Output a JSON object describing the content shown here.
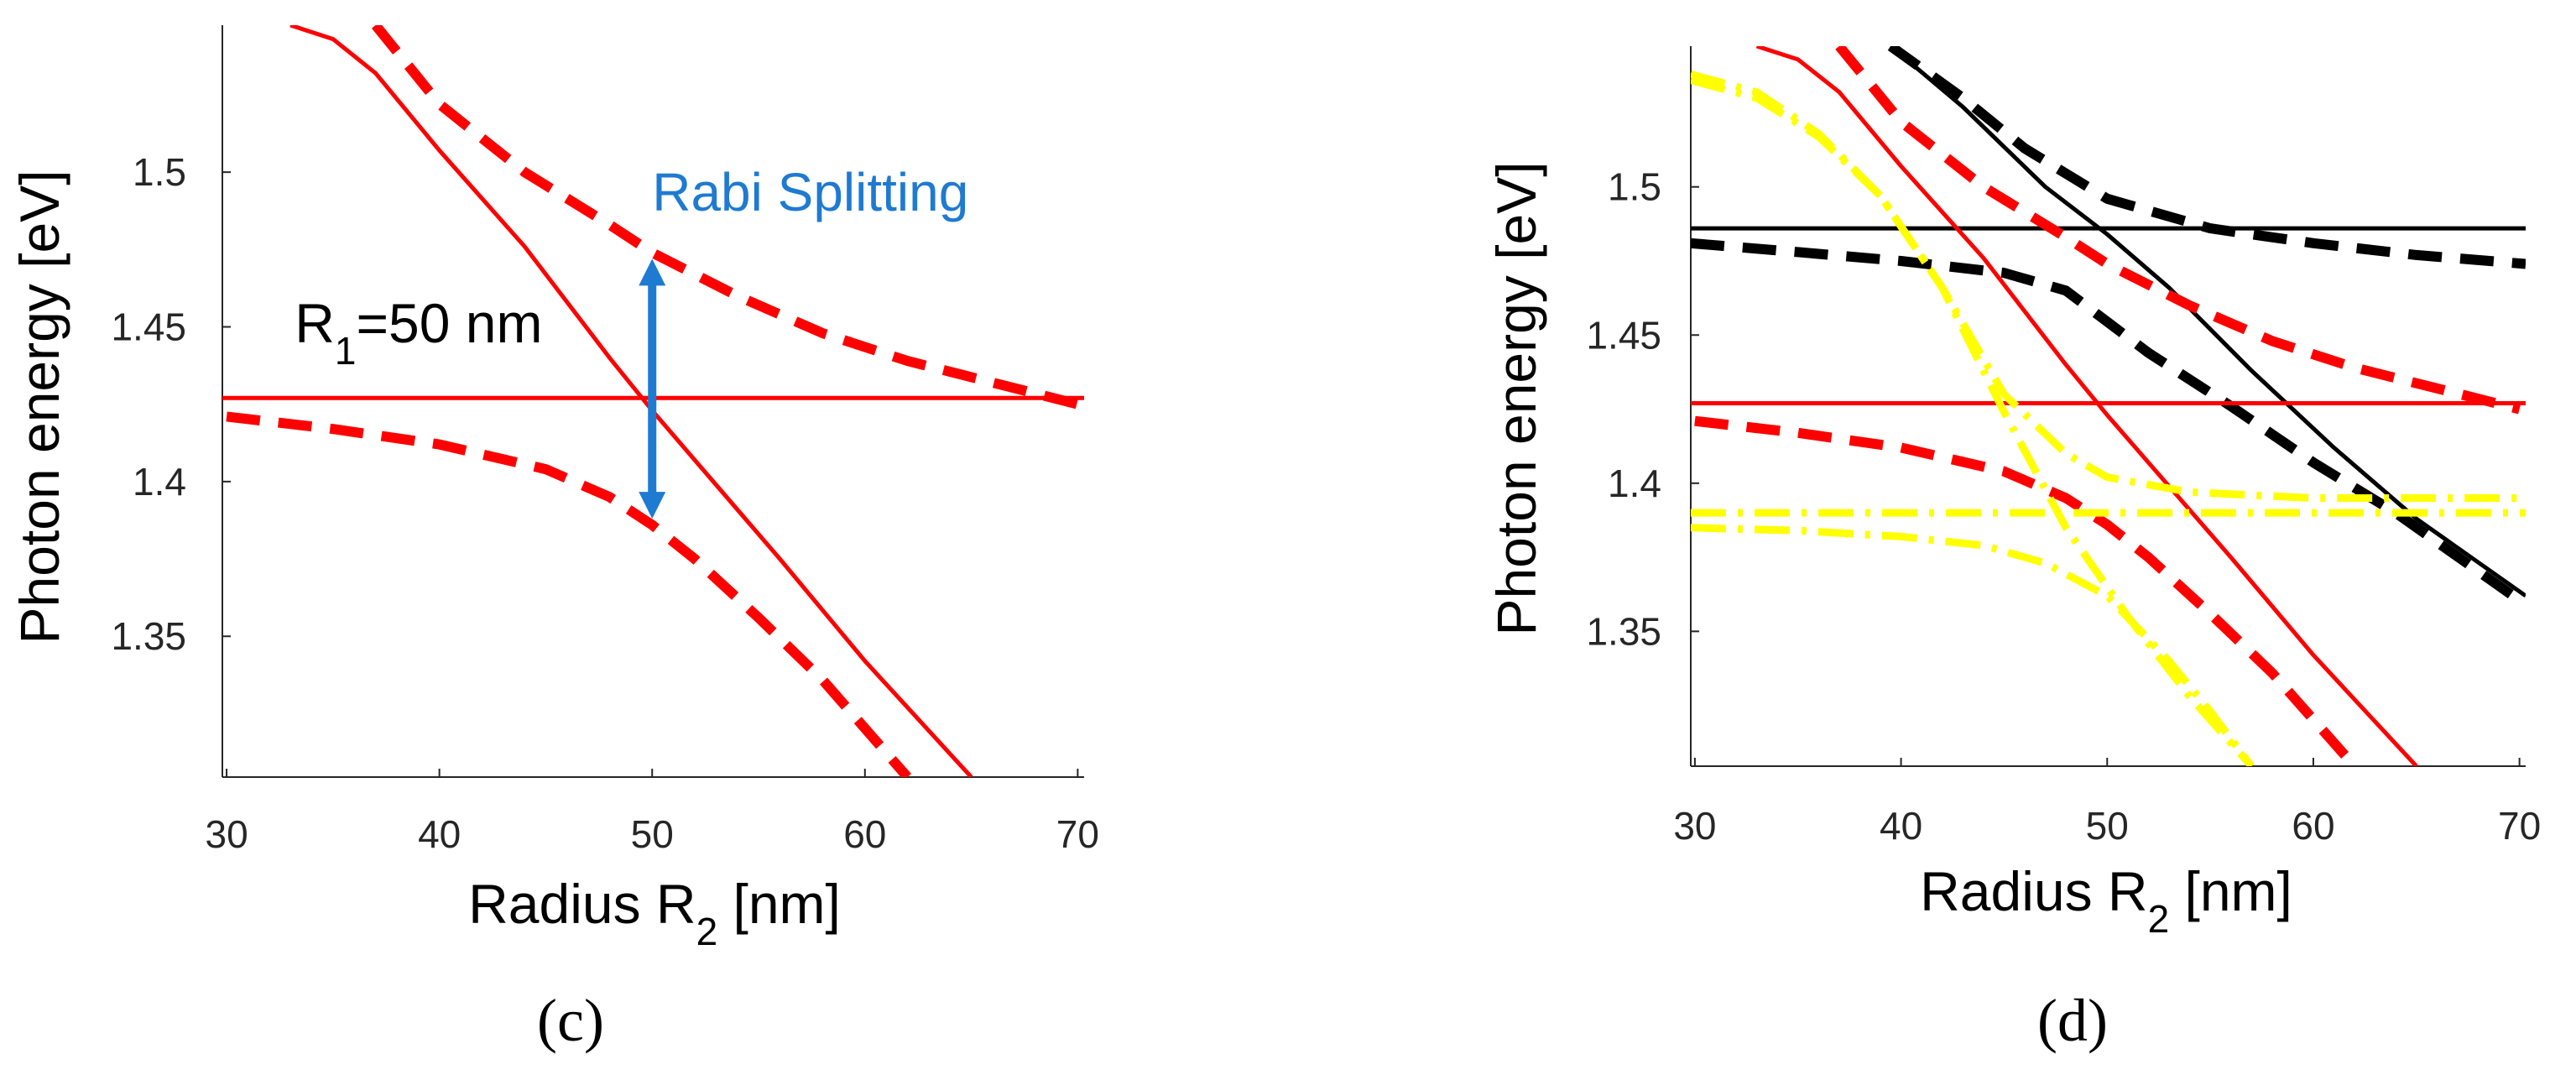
{
  "chart_data": [
    {
      "type": "line",
      "panel_label": "(c)",
      "xlabel": "Radius R",
      "xlabel_sub": "2",
      "xlabel_unit": " [nm]",
      "ylabel": "Photon energy [eV]",
      "xlim": [
        29.8,
        70.3
      ],
      "ylim": [
        1.3045,
        1.5475
      ],
      "x_ticks": [
        30,
        40,
        50,
        60,
        70
      ],
      "x_tick_labels": [
        "30",
        "40",
        "50",
        "60",
        "70"
      ],
      "y_ticks": [
        1.35,
        1.4,
        1.45,
        1.5
      ],
      "y_tick_labels": [
        "1.35",
        "1.4",
        "1.45",
        "1.5"
      ],
      "annotations": [
        {
          "kind": "text",
          "prefix": "R",
          "sub": "1",
          "suffix": "=50 nm",
          "x": 33.2,
          "y": 1.445
        },
        {
          "kind": "double-arrow",
          "label": "Rabi Splitting",
          "x": 50,
          "y_from": 1.388,
          "y_to": 1.472,
          "label_x": 50,
          "label_y": 1.4875
        }
      ],
      "series": [
        {
          "name": "dot R1 (flat)",
          "color": "#ff0000",
          "style": "solid",
          "x": [
            29.8,
            70.3
          ],
          "y": [
            1.427,
            1.427
          ]
        },
        {
          "name": "dot R2 (uncoupled)",
          "color": "#ff0000",
          "style": "solid",
          "x": [
            33,
            35,
            37,
            40,
            44,
            48,
            50,
            52,
            56,
            60,
            65
          ],
          "y": [
            1.5475,
            1.543,
            1.532,
            1.507,
            1.476,
            1.44,
            1.423,
            1.407,
            1.375,
            1.342,
            1.3045
          ]
        },
        {
          "name": "upper coupled",
          "color": "#ff0000",
          "style": "dashed",
          "x": [
            37,
            40,
            44,
            48,
            50,
            54,
            58,
            62,
            66,
            70
          ],
          "y": [
            1.5475,
            1.522,
            1.5,
            1.483,
            1.474,
            1.46,
            1.448,
            1.439,
            1.432,
            1.425
          ]
        },
        {
          "name": "lower coupled",
          "color": "#ff0000",
          "style": "dashed",
          "x": [
            30,
            35,
            40,
            45,
            48,
            50,
            52,
            55,
            58,
            62
          ],
          "y": [
            1.421,
            1.417,
            1.412,
            1.404,
            1.395,
            1.386,
            1.375,
            1.356,
            1.336,
            1.3045
          ]
        }
      ]
    },
    {
      "type": "line",
      "panel_label": "(d)",
      "xlabel": "Radius R",
      "xlabel_sub": "2",
      "xlabel_unit": " [nm]",
      "ylabel": "Photon energy [eV]",
      "xlim": [
        29.8,
        70.3
      ],
      "ylim": [
        1.3045,
        1.5475
      ],
      "x_ticks": [
        30,
        40,
        50,
        60,
        70
      ],
      "x_tick_labels": [
        "30",
        "40",
        "50",
        "60",
        "70"
      ],
      "y_ticks": [
        1.35,
        1.4,
        1.45,
        1.5
      ],
      "y_tick_labels": [
        "1.35",
        "1.4",
        "1.45",
        "1.5"
      ],
      "series": [
        {
          "name": "black flat",
          "color": "#000000",
          "style": "solid",
          "x": [
            29.8,
            70.3
          ],
          "y": [
            1.486,
            1.486
          ]
        },
        {
          "name": "black uncoupled",
          "color": "#000000",
          "style": "solid",
          "x": [
            39.5,
            43,
            47,
            50,
            53,
            57,
            61,
            65,
            70.3
          ],
          "y": [
            1.5475,
            1.527,
            1.5,
            1.484,
            1.466,
            1.438,
            1.412,
            1.388,
            1.362
          ]
        },
        {
          "name": "black upper coupled",
          "color": "#000000",
          "style": "dashed",
          "x": [
            39.5,
            43,
            46,
            50,
            55,
            60,
            65,
            70.3
          ],
          "y": [
            1.5475,
            1.53,
            1.513,
            1.496,
            1.486,
            1.481,
            1.477,
            1.474
          ]
        },
        {
          "name": "black lower coupled",
          "color": "#000000",
          "style": "dashed",
          "x": [
            29.8,
            35,
            40,
            45,
            48,
            52,
            56,
            60,
            64,
            70.3
          ],
          "y": [
            1.481,
            1.478,
            1.475,
            1.471,
            1.465,
            1.444,
            1.426,
            1.407,
            1.39,
            1.359
          ]
        },
        {
          "name": "red flat",
          "color": "#ff0000",
          "style": "solid",
          "x": [
            29.8,
            70.3
          ],
          "y": [
            1.427,
            1.427
          ]
        },
        {
          "name": "red uncoupled",
          "color": "#ff0000",
          "style": "solid",
          "x": [
            33,
            35,
            37,
            40,
            44,
            48,
            50,
            52,
            56,
            60,
            65
          ],
          "y": [
            1.5475,
            1.543,
            1.532,
            1.507,
            1.476,
            1.44,
            1.423,
            1.407,
            1.375,
            1.342,
            1.3045
          ]
        },
        {
          "name": "red upper coupled",
          "color": "#ff0000",
          "style": "dashed",
          "x": [
            37,
            40,
            44,
            48,
            50,
            54,
            58,
            62,
            66,
            70
          ],
          "y": [
            1.5475,
            1.522,
            1.5,
            1.483,
            1.474,
            1.46,
            1.448,
            1.439,
            1.432,
            1.425
          ]
        },
        {
          "name": "red lower coupled",
          "color": "#ff0000",
          "style": "dashed",
          "x": [
            30,
            35,
            40,
            45,
            48,
            50,
            52,
            55,
            58,
            62
          ],
          "y": [
            1.421,
            1.417,
            1.412,
            1.404,
            1.395,
            1.386,
            1.375,
            1.356,
            1.336,
            1.3045
          ]
        },
        {
          "name": "yellow flat",
          "color": "#ffff00",
          "style": "dashdot",
          "x": [
            29.8,
            70.3
          ],
          "y": [
            1.39,
            1.39
          ]
        },
        {
          "name": "yellow uncoupled",
          "color": "#ffff00",
          "style": "dashdot",
          "x": [
            29.8,
            33,
            36,
            39,
            42,
            45,
            48,
            51,
            54,
            57
          ],
          "y": [
            1.536,
            1.53,
            1.517,
            1.497,
            1.466,
            1.424,
            1.385,
            1.355,
            1.328,
            1.3045
          ]
        },
        {
          "name": "yellow upper coupled",
          "color": "#ffff00",
          "style": "dashdot",
          "x": [
            29.8,
            33,
            36,
            39,
            42,
            45,
            48,
            50,
            54,
            60,
            70.3
          ],
          "y": [
            1.538,
            1.532,
            1.518,
            1.497,
            1.466,
            1.43,
            1.41,
            1.402,
            1.397,
            1.395,
            1.395
          ]
        },
        {
          "name": "yellow lower coupled",
          "color": "#ffff00",
          "style": "dashdot",
          "x": [
            29.8,
            35,
            40,
            44,
            47,
            50,
            53,
            55,
            57
          ],
          "y": [
            1.385,
            1.384,
            1.382,
            1.379,
            1.373,
            1.362,
            1.34,
            1.323,
            1.3045
          ]
        }
      ]
    }
  ]
}
